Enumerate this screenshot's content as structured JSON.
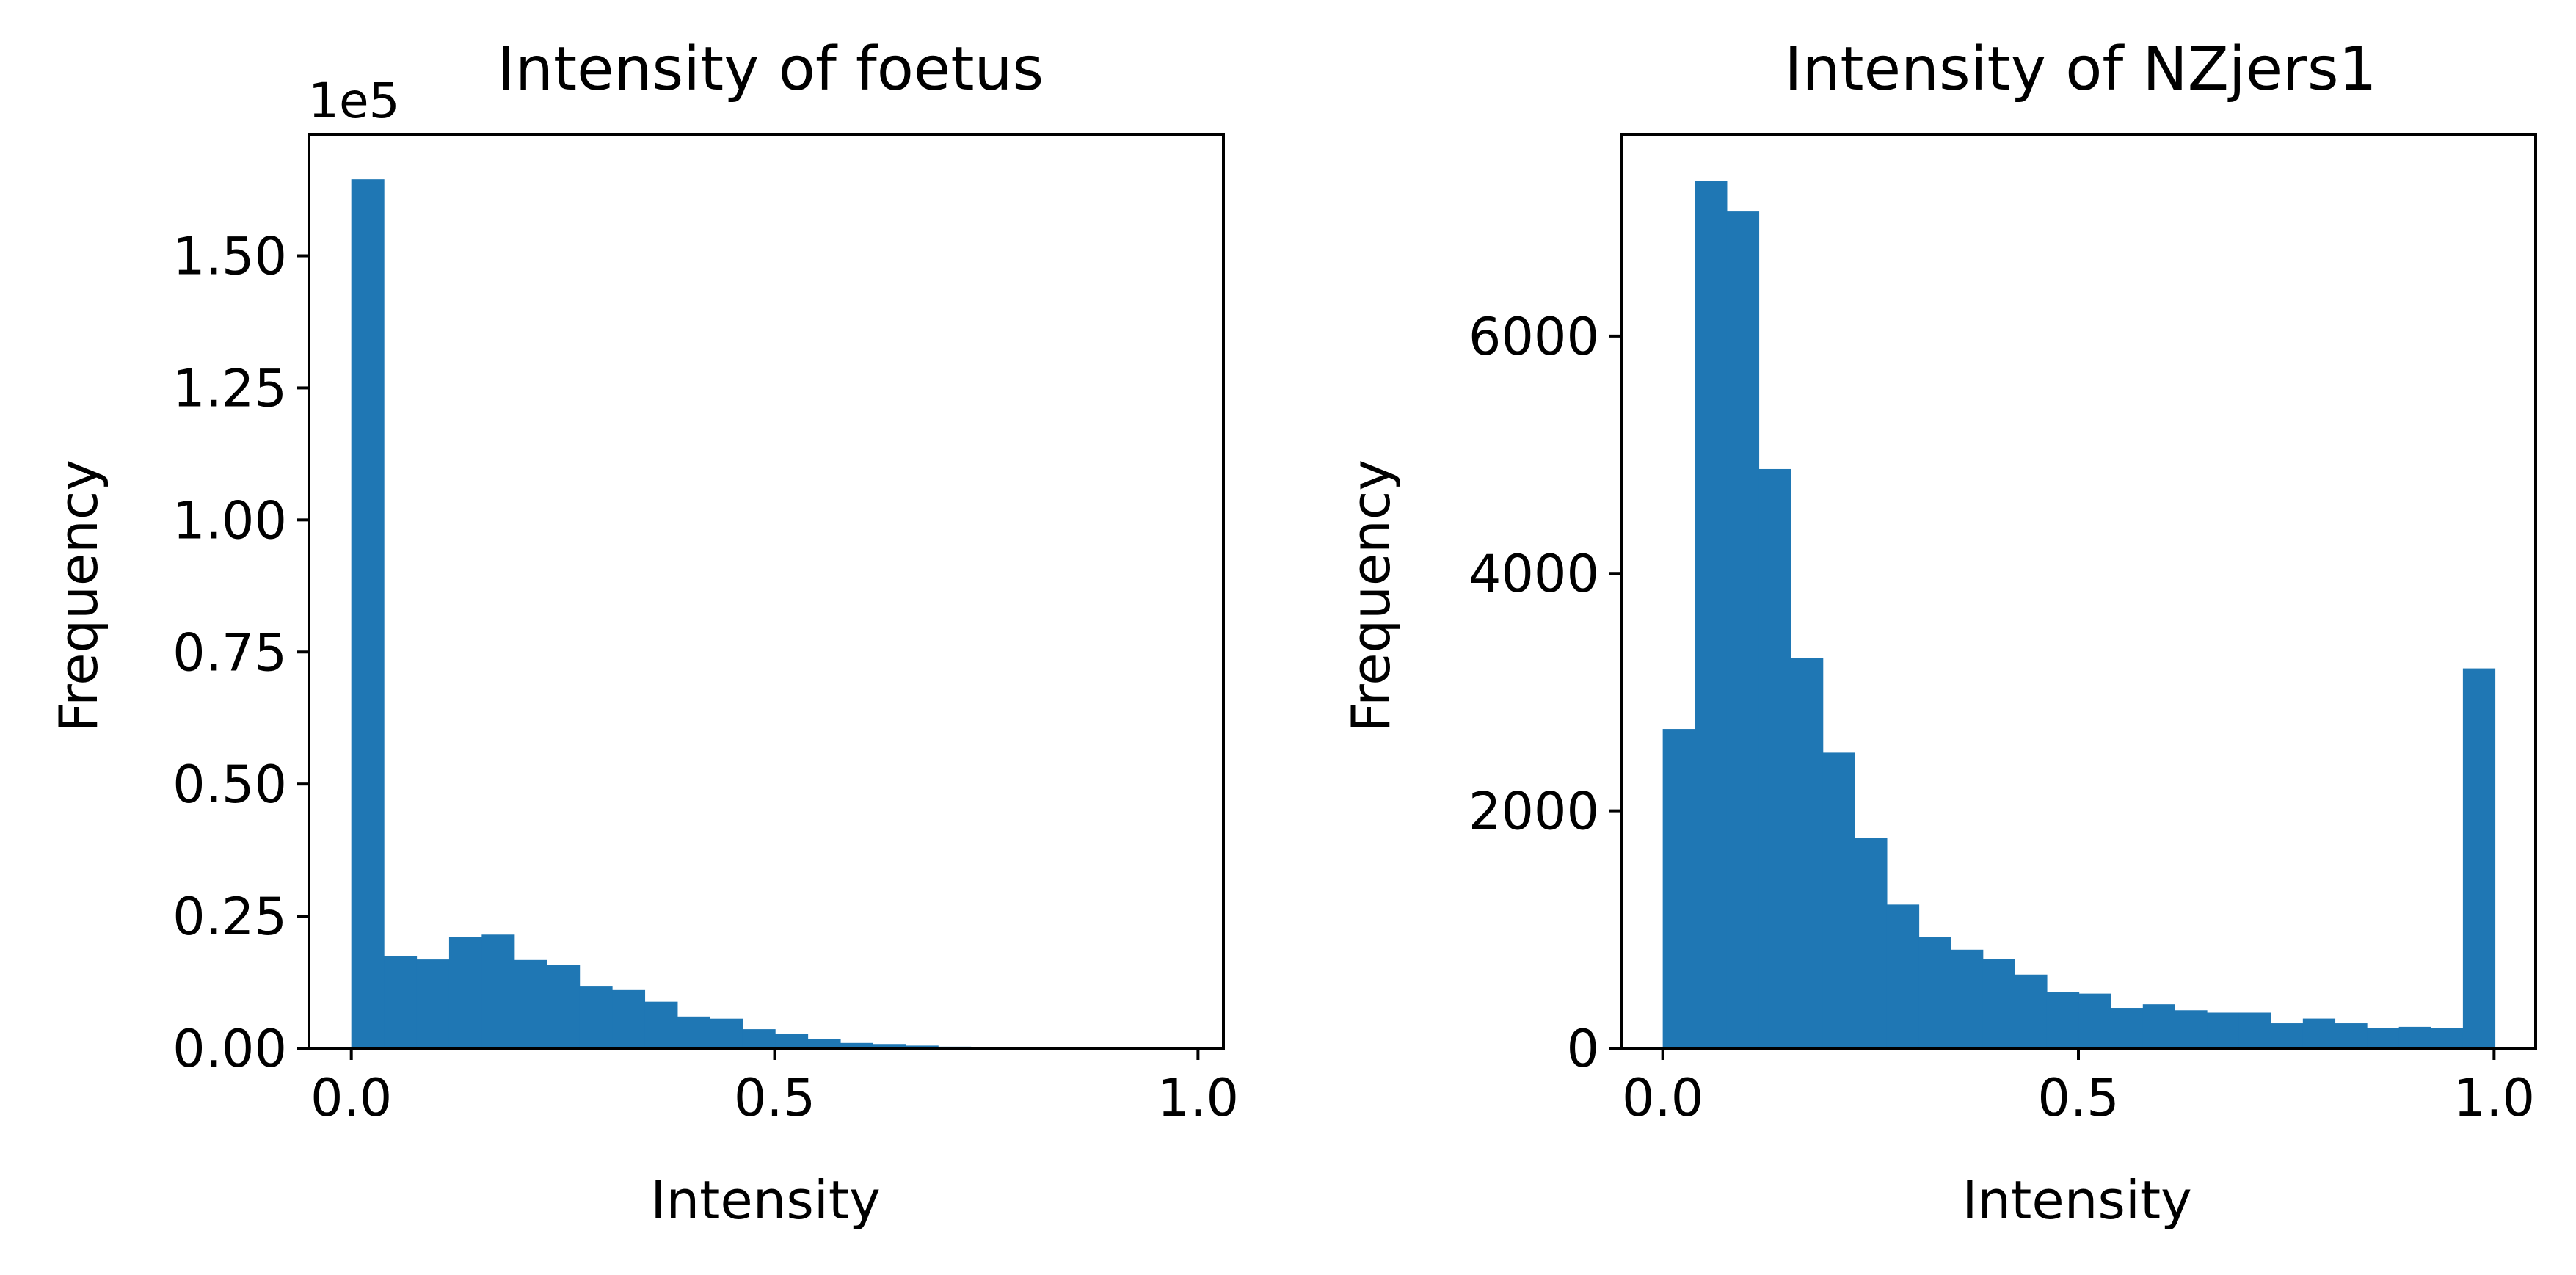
{
  "chart_data": [
    {
      "type": "bar",
      "title": "Intensity of foetus",
      "xlabel": "Intensity",
      "ylabel": "Frequency",
      "y_offset_label": "1e5",
      "xlim": [
        -0.05,
        1.03
      ],
      "ylim": [
        0,
        1.73
      ],
      "xticks": [
        {
          "value": 0.0,
          "label": "0.0"
        },
        {
          "value": 0.5,
          "label": "0.5"
        },
        {
          "value": 1.0,
          "label": "1.0"
        }
      ],
      "yticks": [
        {
          "value": 0.0,
          "label": "0.00"
        },
        {
          "value": 0.25,
          "label": "0.25"
        },
        {
          "value": 0.5,
          "label": "0.50"
        },
        {
          "value": 0.75,
          "label": "0.75"
        },
        {
          "value": 1.0,
          "label": "1.00"
        },
        {
          "value": 1.25,
          "label": "1.25"
        },
        {
          "value": 1.5,
          "label": "1.50"
        }
      ],
      "bin_width": 0.0385,
      "bins_start": [
        0.0,
        0.0385,
        0.077,
        0.1155,
        0.154,
        0.1925,
        0.231,
        0.2695,
        0.308,
        0.3465,
        0.385,
        0.4235,
        0.462,
        0.5005,
        0.539,
        0.5775,
        0.616,
        0.6545,
        0.693,
        0.7315,
        0.77,
        0.8085,
        0.847,
        0.8855,
        0.924,
        0.9625
      ],
      "values": [
        1.645,
        0.175,
        0.168,
        0.21,
        0.215,
        0.167,
        0.158,
        0.118,
        0.11,
        0.088,
        0.06,
        0.056,
        0.036,
        0.027,
        0.018,
        0.01,
        0.008,
        0.005,
        0.003,
        0.002,
        0.001,
        0.001,
        0.001,
        0.001,
        0.0,
        0.0
      ],
      "grid": false,
      "color": "#1f77b4"
    },
    {
      "type": "bar",
      "title": "Intensity of NZjers1",
      "xlabel": "Intensity",
      "ylabel": "Frequency",
      "xlim": [
        -0.05,
        1.05
      ],
      "ylim": [
        0,
        7700
      ],
      "xticks": [
        {
          "value": 0.0,
          "label": "0.0"
        },
        {
          "value": 0.5,
          "label": "0.5"
        },
        {
          "value": 1.0,
          "label": "1.0"
        }
      ],
      "yticks": [
        {
          "value": 0,
          "label": "0"
        },
        {
          "value": 2000,
          "label": "2000"
        },
        {
          "value": 4000,
          "label": "4000"
        },
        {
          "value": 6000,
          "label": "6000"
        }
      ],
      "bin_width": 0.0385,
      "bins_start": [
        0.0,
        0.0385,
        0.077,
        0.1155,
        0.154,
        0.1925,
        0.231,
        0.2695,
        0.308,
        0.3465,
        0.385,
        0.4235,
        0.462,
        0.5005,
        0.539,
        0.5775,
        0.616,
        0.6545,
        0.693,
        0.7315,
        0.77,
        0.8085,
        0.847,
        0.8855,
        0.924,
        0.9625
      ],
      "values": [
        2690,
        7310,
        7050,
        4880,
        3290,
        2490,
        1770,
        1210,
        940,
        830,
        750,
        620,
        470,
        460,
        340,
        370,
        320,
        300,
        300,
        210,
        250,
        210,
        170,
        180,
        170,
        3200
      ],
      "grid": false,
      "color": "#1f77b4"
    }
  ]
}
